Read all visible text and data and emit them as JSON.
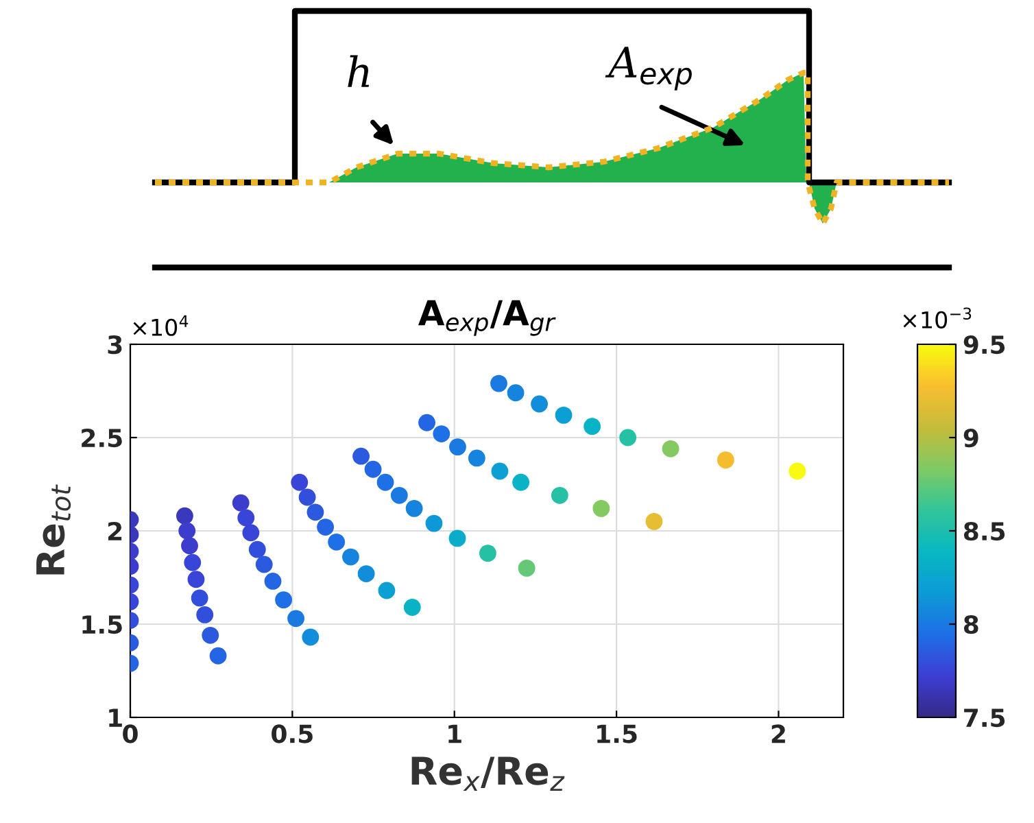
{
  "chart_data": {
    "type": "scatter",
    "title": "A$_{exp}$/A$_{gr}$",
    "xlabel": "Re$_{x}$/Re$_{z}$",
    "ylabel": "Re$_{tot}$",
    "annotations": [
      "h",
      "A$_{exp}$",
      "×10$^{4}$",
      "×10$^{−3}$"
    ],
    "x": [
      0,
      0,
      0,
      0,
      0,
      0,
      0,
      0,
      0,
      0.168,
      0.175,
      0.183,
      0.192,
      0.203,
      0.214,
      0.23,
      0.247,
      0.271,
      0.341,
      0.357,
      0.372,
      0.392,
      0.413,
      0.44,
      0.473,
      0.511,
      0.556,
      0.522,
      0.546,
      0.571,
      0.602,
      0.636,
      0.68,
      0.728,
      0.791,
      0.87,
      0.712,
      0.749,
      0.787,
      0.83,
      0.876,
      0.937,
      1.009,
      1.103,
      1.223,
      0.915,
      0.96,
      1.01,
      1.069,
      1.14,
      1.205,
      1.325,
      1.453,
      1.616,
      1.137,
      1.189,
      1.262,
      1.337,
      1.425,
      1.535,
      1.667,
      1.837,
      2.058
    ],
    "values": [
      2.06,
      1.98,
      1.89,
      1.81,
      1.71,
      1.62,
      1.52,
      1.4,
      1.29,
      2.08,
      2.0,
      1.92,
      1.83,
      1.74,
      1.64,
      1.55,
      1.44,
      1.33,
      2.15,
      2.07,
      1.99,
      1.9,
      1.82,
      1.73,
      1.63,
      1.53,
      1.43,
      2.26,
      2.18,
      2.1,
      2.02,
      1.94,
      1.86,
      1.77,
      1.68,
      1.59,
      2.4,
      2.33,
      2.26,
      2.19,
      2.12,
      2.04,
      1.96,
      1.88,
      1.8,
      2.58,
      2.52,
      2.45,
      2.39,
      2.32,
      2.26,
      2.19,
      2.12,
      2.05,
      2.79,
      2.74,
      2.68,
      2.62,
      2.56,
      2.5,
      2.44,
      2.38,
      2.32
    ],
    "cvalues": [
      7.65,
      7.65,
      7.7,
      7.7,
      7.75,
      7.75,
      7.8,
      7.85,
      7.9,
      7.65,
      7.7,
      7.7,
      7.75,
      7.75,
      7.8,
      7.8,
      7.85,
      7.9,
      7.7,
      7.75,
      7.75,
      7.8,
      7.85,
      7.9,
      7.95,
      8.0,
      8.1,
      7.75,
      7.8,
      7.85,
      7.9,
      7.95,
      8.05,
      8.1,
      8.2,
      8.35,
      7.85,
      7.9,
      7.95,
      8.0,
      8.05,
      8.15,
      8.3,
      8.55,
      8.75,
      7.9,
      7.95,
      8.0,
      8.05,
      8.2,
      8.35,
      8.55,
      8.85,
      9.2,
      8.0,
      8.05,
      8.1,
      8.2,
      8.35,
      8.55,
      8.85,
      9.25,
      9.5
    ],
    "xlim": [
      0,
      2.2
    ],
    "xticks": [
      0,
      0.5,
      1,
      1.5,
      2
    ],
    "ylim": [
      1,
      3
    ],
    "yticks": [
      1,
      1.5,
      2,
      2.5,
      3
    ],
    "clim": [
      7.5,
      9.5
    ],
    "cticks": [
      7.5,
      8,
      8.5,
      9,
      9.5
    ],
    "grid": true,
    "marker": "circle"
  }
}
